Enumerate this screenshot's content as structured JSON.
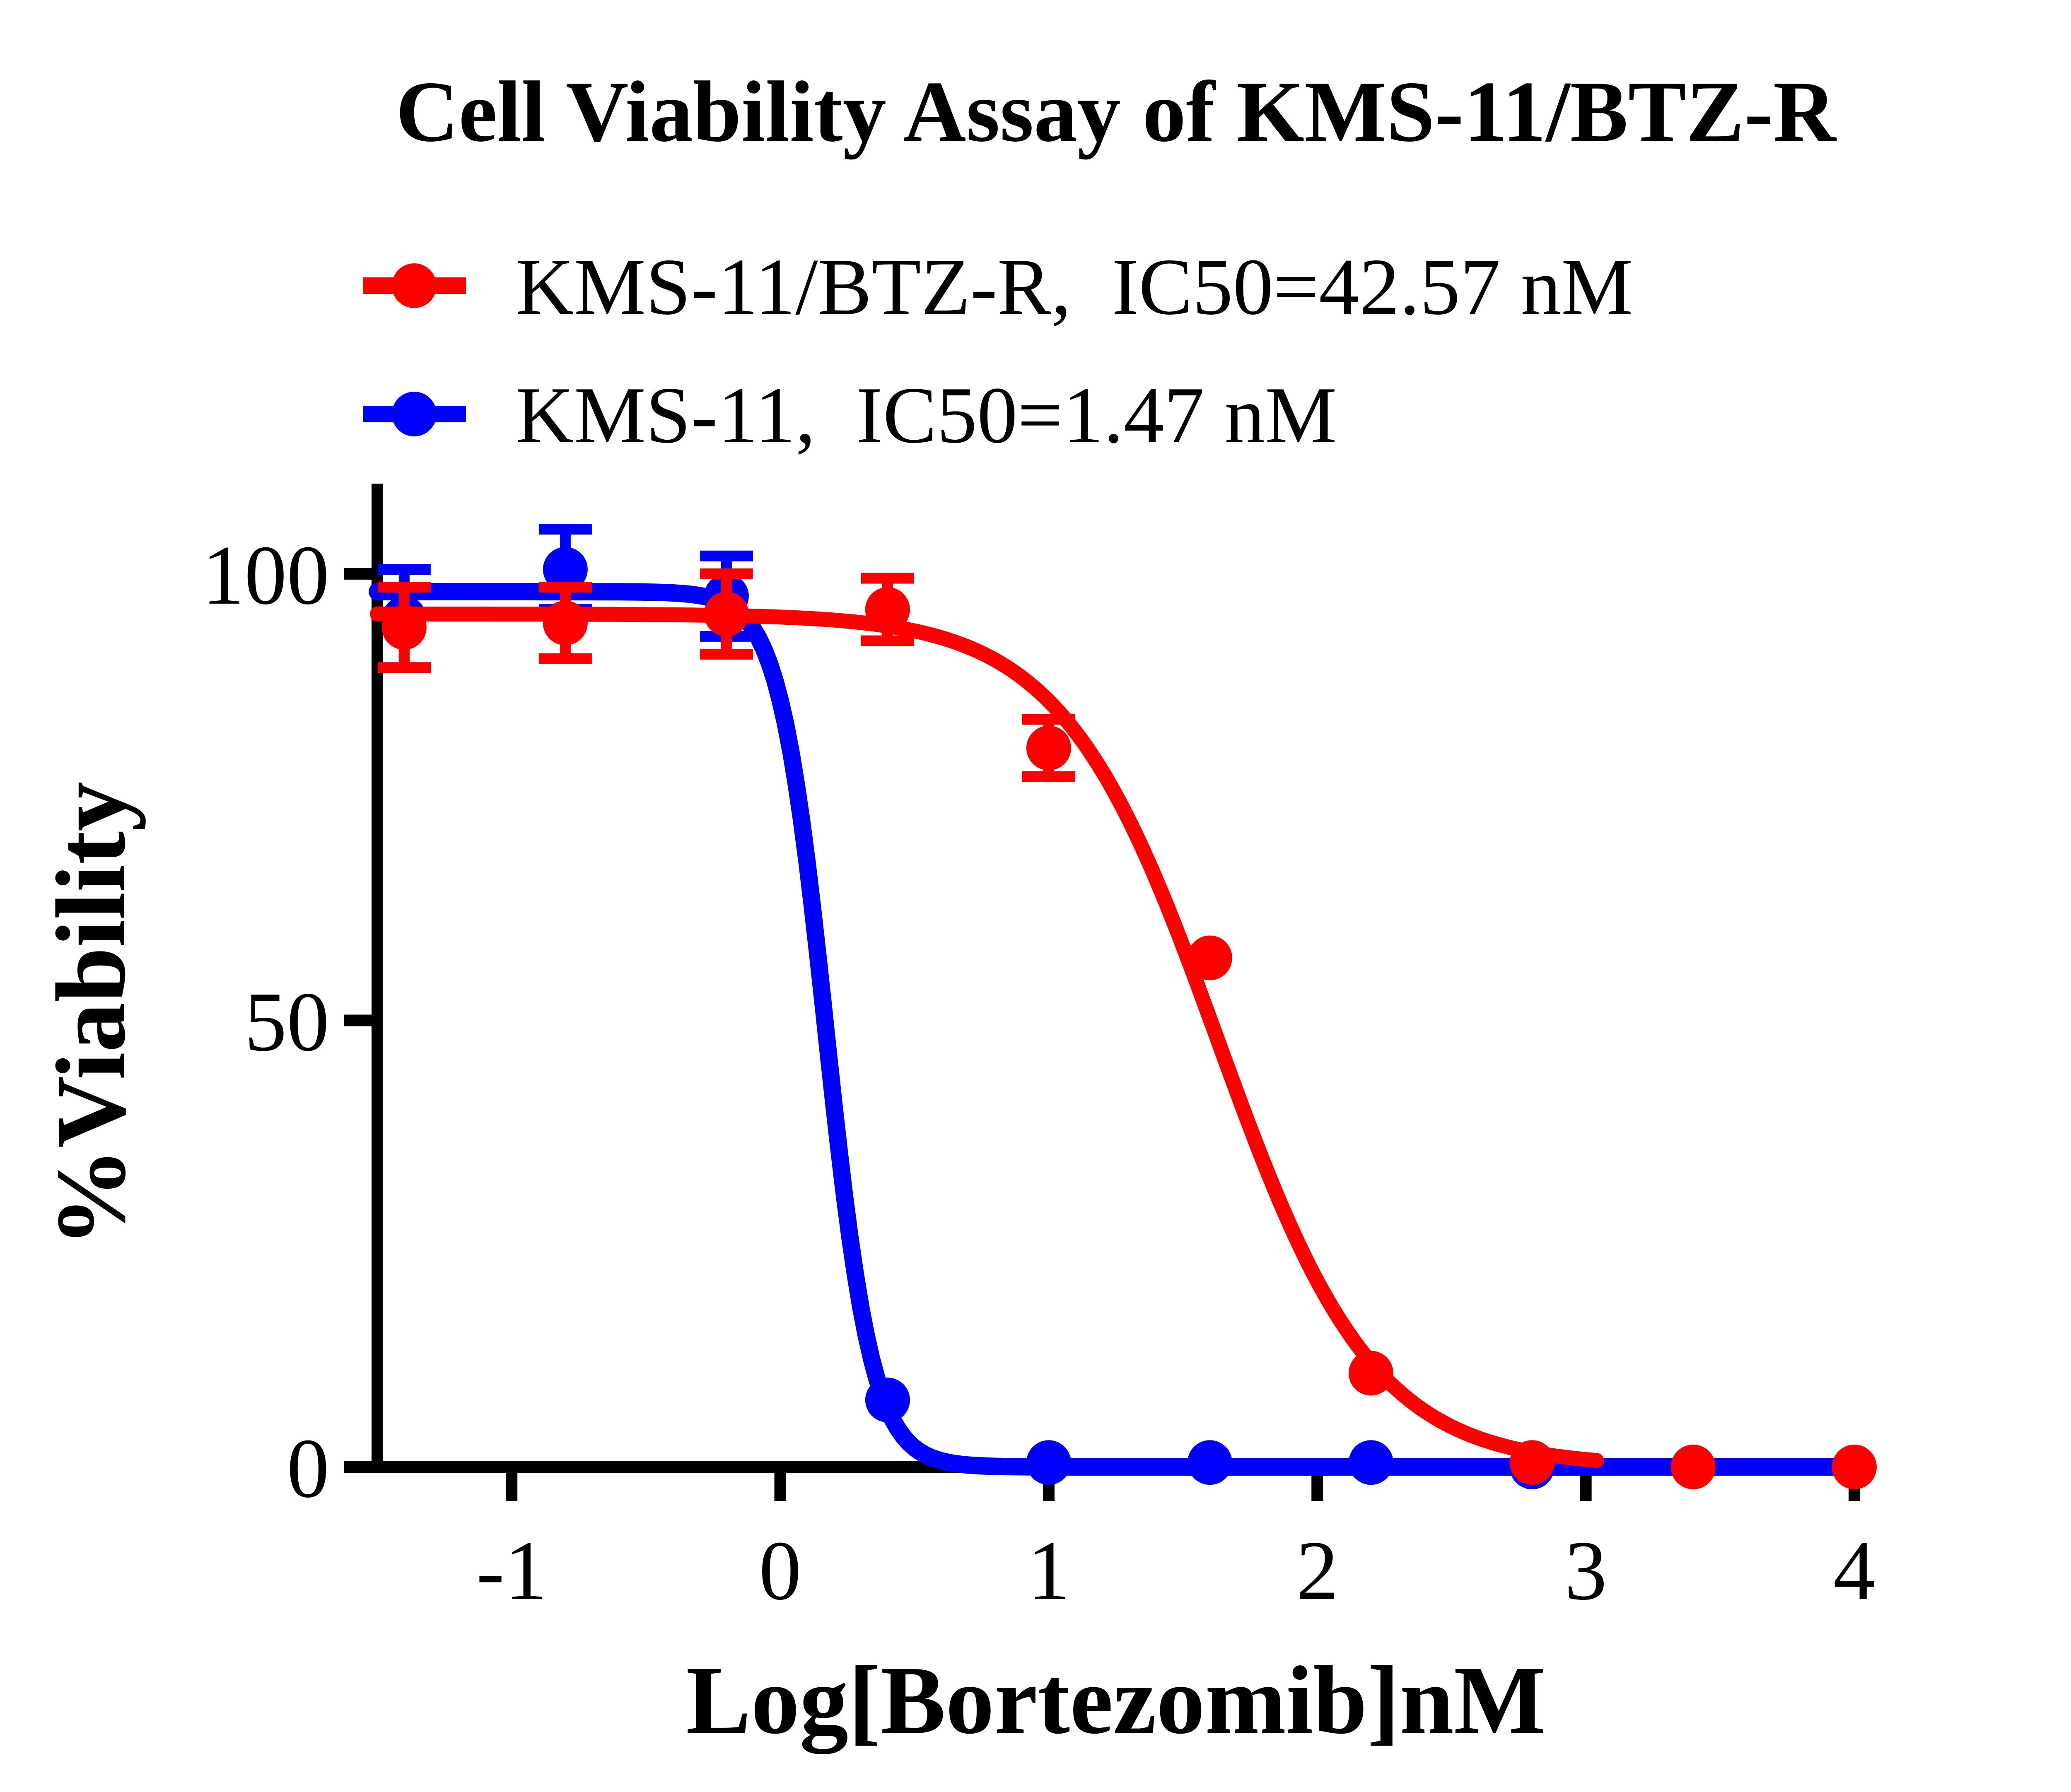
{
  "title": "Cell Viability Assay of KMS-11/BTZ-R",
  "colors": {
    "red": "#ff0000",
    "blue": "#0000ff",
    "axis": "#000000",
    "text": "#000000",
    "background": "#ffffff"
  },
  "legend": [
    {
      "label": "KMS-11/BTZ-R,  IC50=42.57 nM",
      "series": "KMS-11/BTZ-R",
      "color": "red"
    },
    {
      "label": "KMS-11,  IC50=1.47 nM",
      "series": "KMS-11",
      "color": "blue"
    }
  ],
  "chart_data": {
    "type": "line",
    "title": "Cell Viability Assay of KMS-11/BTZ-R",
    "xlabel": "Log[Bortezomib]nM",
    "ylabel": "%Viability",
    "xlim": [
      -1.5,
      4.0
    ],
    "ylim": [
      0,
      110
    ],
    "xticks": [
      "-1",
      "0",
      "1",
      "2",
      "3",
      "4"
    ],
    "xtick_values": [
      -1,
      0,
      1,
      2,
      3,
      4
    ],
    "yticks": [
      "0",
      "50",
      "100"
    ],
    "ytick_values": [
      0,
      50,
      100
    ],
    "grid": false,
    "legend_position": "top-left, above plot",
    "series": [
      {
        "name": "KMS-11/BTZ-R",
        "color": "red",
        "ic50_label": "IC50=42.57 nM",
        "ic50_nM": 42.57,
        "x": [
          -1.4,
          -0.8,
          -0.2,
          0.4,
          1.0,
          1.6,
          2.2,
          2.8,
          3.4,
          4.0
        ],
        "y": [
          94,
          94.5,
          95.5,
          96,
          80.5,
          57,
          10.5,
          0.5,
          0,
          0
        ],
        "yerr": [
          4.5,
          4,
          4.5,
          3.5,
          3.2,
          0,
          0,
          0,
          0,
          0
        ],
        "fit": {
          "model": "4PL",
          "top": 95.5,
          "bottom": 0,
          "logIC50": 1.63,
          "hillslope": 1.5,
          "x_range": [
            -1.5,
            3.05
          ]
        }
      },
      {
        "name": "KMS-11",
        "color": "blue",
        "ic50_label": "IC50=1.47 nM",
        "ic50_nM": 1.47,
        "x": [
          -1.4,
          -0.8,
          -0.2,
          0.4,
          1.0,
          1.6,
          2.2,
          2.8
        ],
        "y": [
          95,
          100.5,
          97.5,
          7.5,
          0.5,
          0.5,
          0.5,
          0
        ],
        "yerr": [
          5.5,
          4.5,
          4.5,
          0,
          0,
          0,
          0,
          0
        ],
        "fit": {
          "model": "4PL",
          "top": 98,
          "bottom": 0,
          "logIC50": 0.17,
          "hillslope": 5,
          "x_range": [
            -1.5,
            4.0
          ]
        }
      }
    ]
  }
}
